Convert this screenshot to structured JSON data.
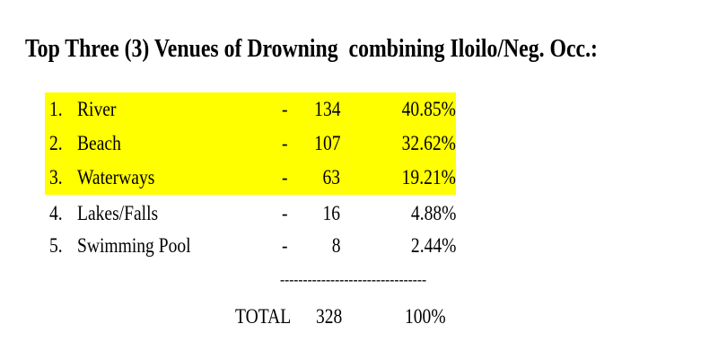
{
  "header": {
    "title": "Top Three (3) Venues of Drowning  combining Iloilo/Neg. Occ.:"
  },
  "table": {
    "rows": [
      [
        "1.",
        "River",
        "-",
        "134",
        "40.85%"
      ],
      [
        "2.",
        "Beach",
        "-",
        "107",
        "32.62%"
      ],
      [
        "3.",
        "Waterways",
        "-",
        "63",
        "19.21%"
      ],
      [
        "4.",
        "Lakes/Falls",
        "-",
        "16",
        "4.88%"
      ],
      [
        "5.",
        "Swimming Pool",
        "-",
        "8",
        "2.44%"
      ]
    ],
    "separator": "--------------------------------",
    "total": [
      "TOTAL",
      "328",
      "100%"
    ]
  }
}
